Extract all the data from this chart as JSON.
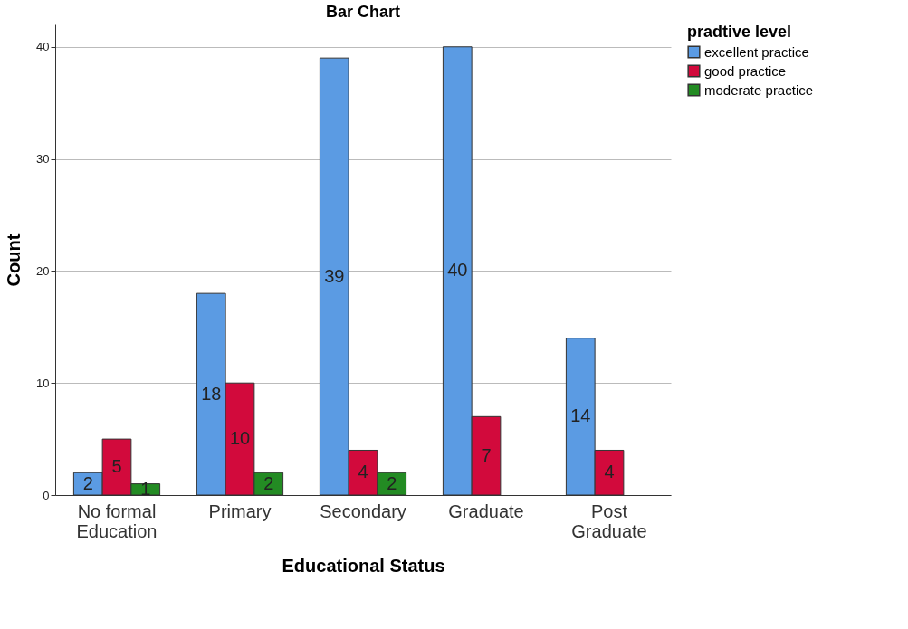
{
  "chart_data": {
    "type": "bar",
    "title": "Bar Chart",
    "xlabel": "Educational Status",
    "ylabel": "Count",
    "legend_title": "pradtive level",
    "categories": [
      "No formal Education",
      "Primary",
      "Secondary",
      "Graduate",
      "Post Graduate"
    ],
    "series": [
      {
        "name": "excellent practice",
        "color": "#5b9be3",
        "values": [
          2,
          18,
          39,
          40,
          14
        ]
      },
      {
        "name": "good practice",
        "color": "#d20a3c",
        "values": [
          5,
          10,
          4,
          7,
          4
        ]
      },
      {
        "name": "moderate practice",
        "color": "#238b23",
        "values": [
          1,
          2,
          2,
          null,
          null
        ]
      }
    ],
    "ylim": [
      0,
      42
    ],
    "yticks": [
      0,
      10,
      20,
      30,
      40
    ],
    "grid": "y",
    "legend": "top right",
    "data_labels": true
  }
}
